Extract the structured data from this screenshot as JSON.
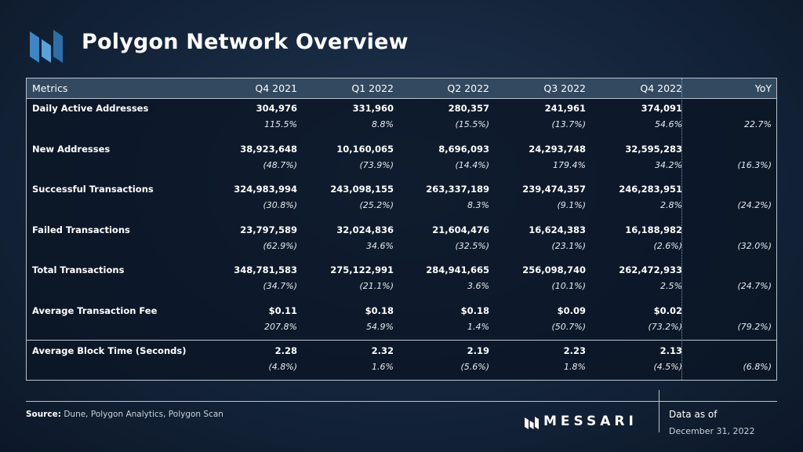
{
  "header": {
    "title": "Polygon Network Overview",
    "logo_icon": "polygon-bars-logo-icon",
    "accent": "#3d86c6"
  },
  "table": {
    "columns": [
      "Metrics",
      "Q4 2021",
      "Q1 2022",
      "Q2 2022",
      "Q3 2022",
      "Q4 2022",
      "YoY"
    ],
    "rows": [
      {
        "metric": "Daily Active Addresses",
        "values": [
          "304,976",
          "331,960",
          "280,357",
          "241,961",
          "374,091"
        ],
        "changes": [
          "115.5%",
          "8.8%",
          "(15.5%)",
          "(13.7%)",
          "54.6%"
        ],
        "yoy": "22.7%"
      },
      {
        "metric": "New Addresses",
        "values": [
          "38,923,648",
          "10,160,065",
          "8,696,093",
          "24,293,748",
          "32,595,283"
        ],
        "changes": [
          "(48.7%)",
          "(73.9%)",
          "(14.4%)",
          "179.4%",
          "34.2%"
        ],
        "yoy": "(16.3%)"
      },
      {
        "metric": "Successful Transactions",
        "values": [
          "324,983,994",
          "243,098,155",
          "263,337,189",
          "239,474,357",
          "246,283,951"
        ],
        "changes": [
          "(30.8%)",
          "(25.2%)",
          "8.3%",
          "(9.1%)",
          "2.8%"
        ],
        "yoy": "(24.2%)"
      },
      {
        "metric": "Failed Transactions",
        "values": [
          "23,797,589",
          "32,024,836",
          "21,604,476",
          "16,624,383",
          "16,188,982"
        ],
        "changes": [
          "(62.9%)",
          "34.6%",
          "(32.5%)",
          "(23.1%)",
          "(2.6%)"
        ],
        "yoy": "(32.0%)"
      },
      {
        "metric": "Total Transactions",
        "values": [
          "348,781,583",
          "275,122,991",
          "284,941,665",
          "256,098,740",
          "262,472,933"
        ],
        "changes": [
          "(34.7%)",
          "(21.1%)",
          "3.6%",
          "(10.1%)",
          "2.5%"
        ],
        "yoy": "(24.7%)"
      },
      {
        "metric": "Average Transaction Fee",
        "values": [
          "$0.11",
          "$0.18",
          "$0.18",
          "$0.09",
          "$0.02"
        ],
        "changes": [
          "207.8%",
          "54.9%",
          "1.4%",
          "(50.7%)",
          "(73.2%)"
        ],
        "yoy": "(79.2%)"
      },
      {
        "metric": "Average Block Time (Seconds)",
        "values": [
          "2.28",
          "2.32",
          "2.19",
          "2.23",
          "2.13"
        ],
        "changes": [
          "(4.8%)",
          "1.6%",
          "(5.6%)",
          "1.8%",
          "(4.5%)"
        ],
        "yoy": "(6.8%)"
      }
    ]
  },
  "footer": {
    "source_label": "Source:",
    "source_text": "Dune, Polygon Analytics, Polygon Scan",
    "brand": "MESSARI",
    "brand_icon": "messari-logo-icon",
    "as_of_label": "Data as of",
    "as_of_date": "December 31, 2022"
  }
}
